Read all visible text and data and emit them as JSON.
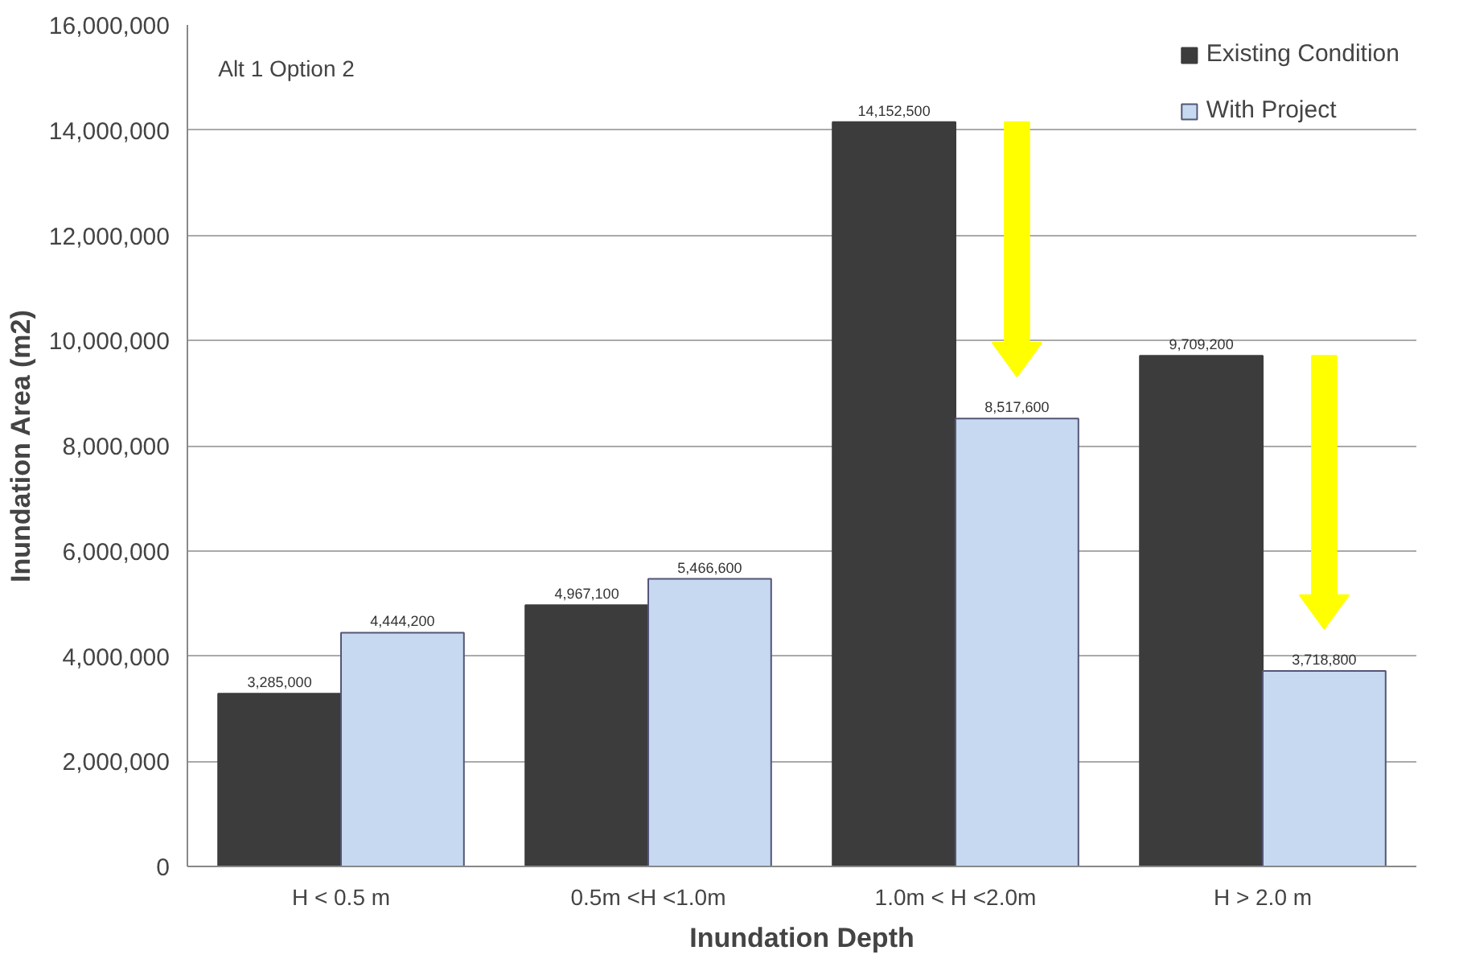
{
  "chart_data": {
    "type": "bar",
    "xlabel": "Inundation Depth",
    "ylabel": "Inundation Area (m2)",
    "categories": [
      "H < 0.5 m",
      "0.5m <H <1.0m",
      "1.0m < H <2.0m",
      "H > 2.0 m"
    ],
    "series": [
      {
        "name": "Existing Condition",
        "color": "#3c3c3c",
        "values": [
          3285000,
          4967100,
          14152500,
          9709200
        ]
      },
      {
        "name": "With Project",
        "color": "#c6d9f0",
        "values": [
          4444200,
          5466600,
          8517600,
          3718800
        ]
      }
    ],
    "ylim": [
      0,
      16000000
    ],
    "yticks": [
      {
        "value": 0,
        "label": "0"
      },
      {
        "value": 2000000,
        "label": "2,000,000"
      },
      {
        "value": 4000000,
        "label": "4,000,000"
      },
      {
        "value": 6000000,
        "label": "6,000,000"
      },
      {
        "value": 8000000,
        "label": "8,000,000"
      },
      {
        "value": 10000000,
        "label": "10,000,000"
      },
      {
        "value": 12000000,
        "label": "12,000,000"
      },
      {
        "value": 14000000,
        "label": "14,000,000"
      },
      {
        "value": 16000000,
        "label": "16,000,000"
      }
    ],
    "value_labels": [
      [
        "3,285,000",
        "4,967,100",
        "14,152,500",
        "9,709,200"
      ],
      [
        "4,444,200",
        "5,466,600",
        "8,517,600",
        "3,718,800"
      ]
    ],
    "annotations": [
      "Alt 1 Option 2"
    ],
    "grid": "y",
    "legend": "top right"
  }
}
